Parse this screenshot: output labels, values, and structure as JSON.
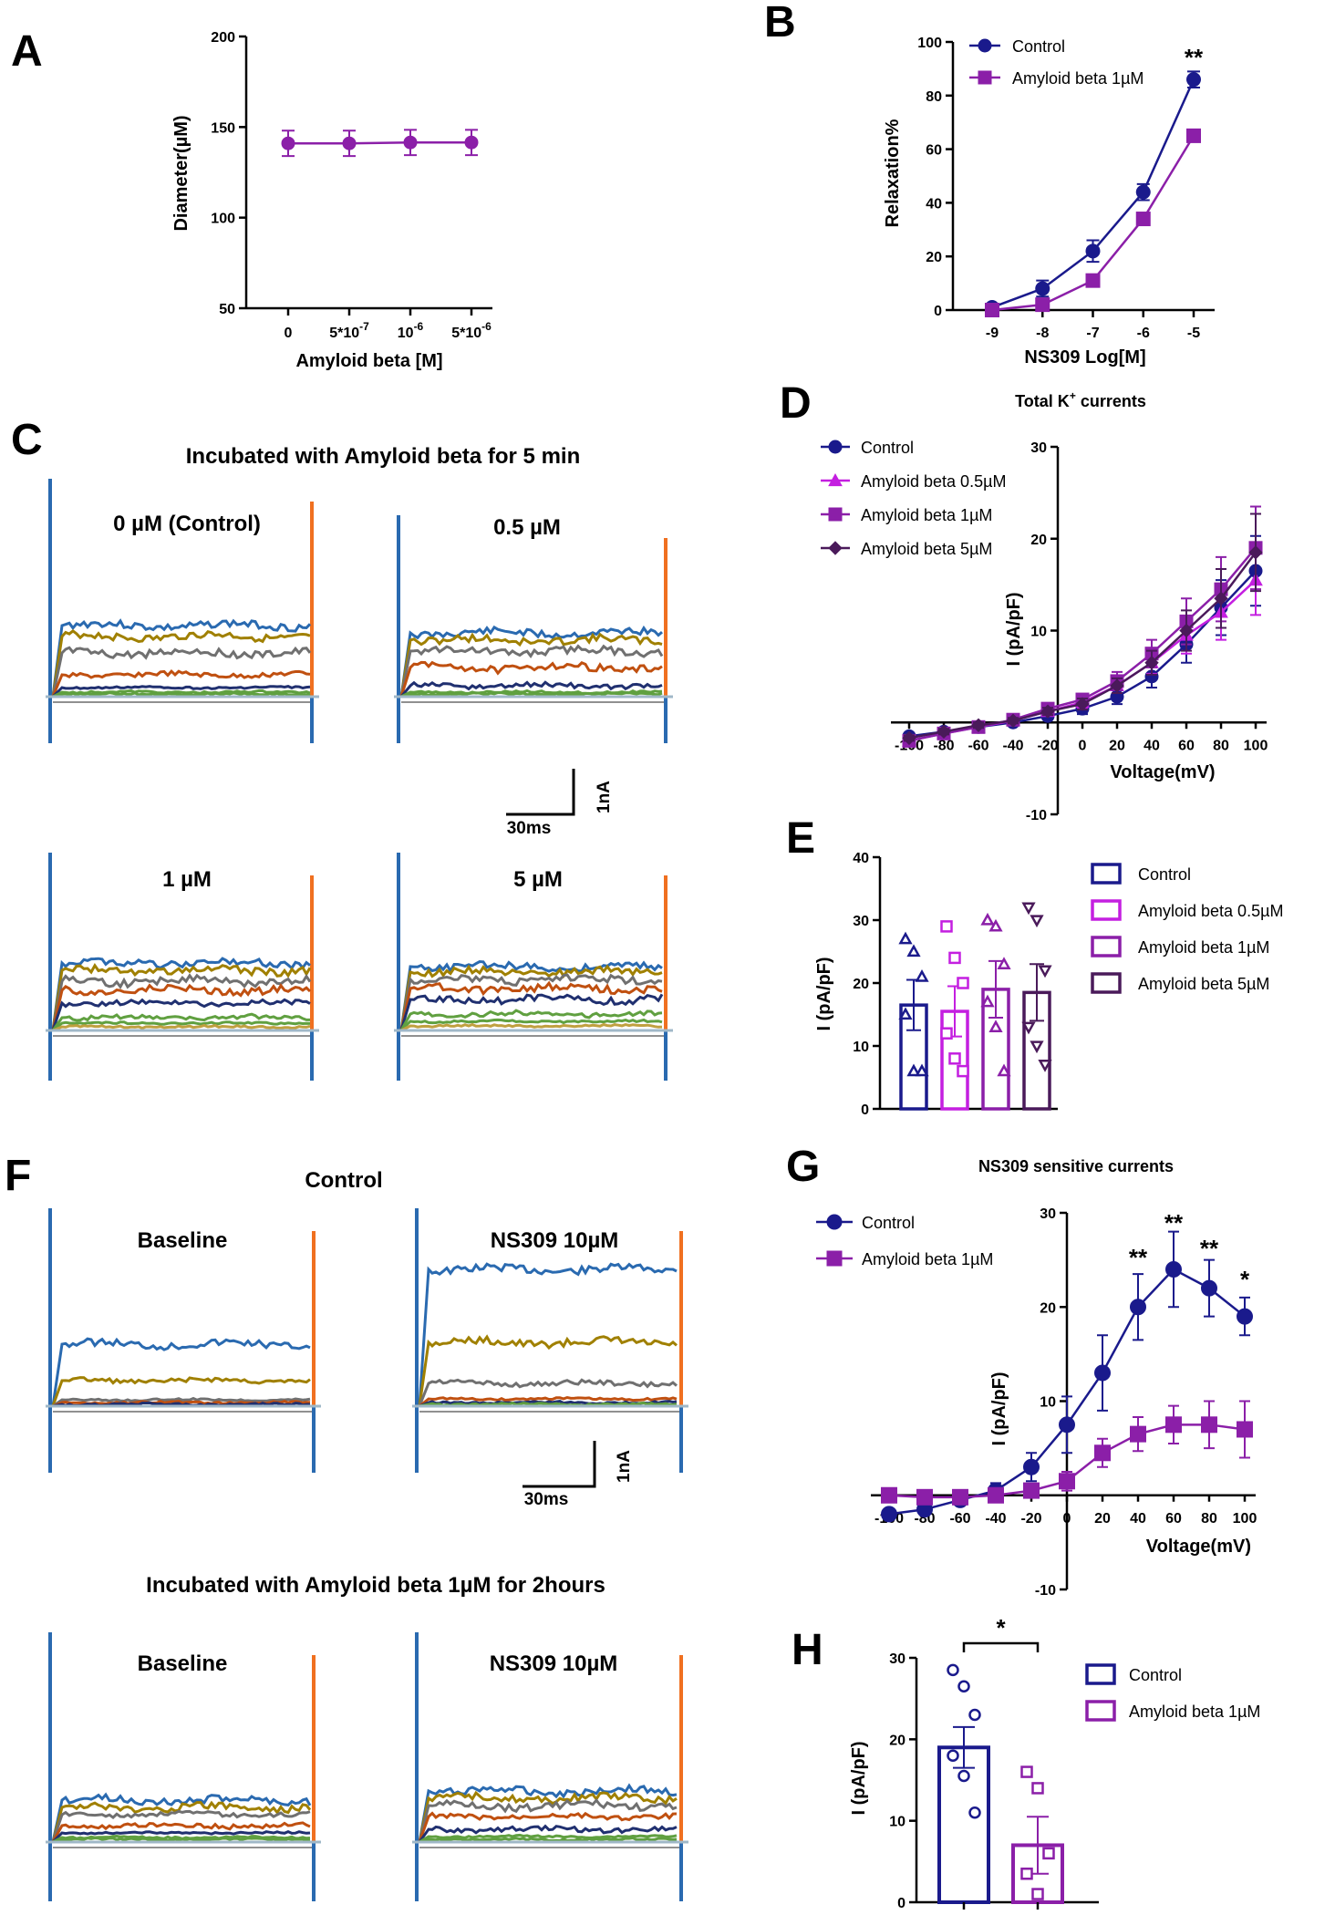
{
  "colors": {
    "navy": "#1a1a8c",
    "purple": "#8b1fa8",
    "magenta": "#c41fe0",
    "dark_purple": "#4a1a5a",
    "trace_blue": "#2a6ab0",
    "trace_gold": "#a08000",
    "trace_gray": "#707070",
    "trace_orange": "#c05010",
    "trace_navy": "#203070",
    "trace_green": "#60a040",
    "trace_spike_end": "#f07020"
  },
  "panels": {
    "A": {
      "letter": "A",
      "chart_data": {
        "type": "line",
        "categories": [
          "0",
          "5*10",
          "10",
          "5*10"
        ],
        "category_superscripts": [
          "",
          "-7",
          "-6",
          "-6"
        ],
        "values": [
          141,
          141,
          141.5,
          141.5
        ],
        "errors": [
          7,
          7,
          7,
          7
        ],
        "xlabel": "Amyloid beta [M]",
        "ylabel": "Diameter(µM)",
        "ylim": [
          50,
          200
        ],
        "yticks": [
          50,
          100,
          150,
          200
        ]
      }
    },
    "B": {
      "letter": "B",
      "chart_data": {
        "type": "line",
        "x": [
          -9,
          -8,
          -7,
          -6,
          -5
        ],
        "xticks": [
          "-9",
          "-8",
          "-7",
          "-6",
          "-5"
        ],
        "xlabel": "NS309 Log[M]",
        "ylabel": "Relaxation%",
        "ylim": [
          0,
          100
        ],
        "yticks": [
          0,
          20,
          40,
          60,
          80,
          100
        ],
        "series": [
          {
            "name": "Control",
            "values": [
              1,
              8,
              22,
              44,
              86
            ],
            "errors": [
              1,
              3,
              4,
              3,
              3
            ]
          },
          {
            "name": "Amyloid beta 1µM",
            "values": [
              0,
              2,
              11,
              34,
              65
            ],
            "errors": [
              0,
              1,
              2,
              2,
              2
            ]
          }
        ],
        "annotations": [
          {
            "x": -5,
            "text": "**"
          }
        ]
      }
    },
    "C": {
      "letter": "C",
      "title": "Incubated with Amyloid beta for 5 min",
      "traces": [
        "0 µM (Control)",
        "0.5 µM",
        "1 µM",
        "5 µM"
      ],
      "scale_x": "30ms",
      "scale_y": "1nA"
    },
    "D": {
      "letter": "D",
      "chart_data": {
        "type": "line",
        "title": "Total K",
        "title_sup": "+",
        "title_end": " currents",
        "x": [
          -100,
          -80,
          -60,
          -40,
          -20,
          0,
          20,
          40,
          60,
          80,
          100
        ],
        "xticks": [
          "-100",
          "-80",
          "-60",
          "-40",
          "-20",
          "0",
          "20",
          "40",
          "60",
          "80",
          "100"
        ],
        "xlabel": "Voltage(mV)",
        "ylabel": "I (pA/pF)",
        "ylim": [
          -10,
          30
        ],
        "yticks": [
          -10,
          10,
          20,
          30
        ],
        "series": [
          {
            "name": "Control",
            "values": [
              -1.5,
              -1,
              -0.5,
              0,
              0.7,
              1.5,
              2.8,
              5,
              8.5,
              12.5,
              16.5
            ],
            "errors": [
              0.3,
              0.3,
              0.3,
              0.3,
              0.4,
              0.6,
              0.8,
              1.2,
              2,
              3,
              3.8
            ]
          },
          {
            "name": "Amyloid beta 0.5µM",
            "values": [
              -2,
              -1.2,
              -0.5,
              0.2,
              1.2,
              2.2,
              4,
              6.5,
              9.5,
              12,
              15.5
            ],
            "errors": [
              0.3,
              0.3,
              0.3,
              0.3,
              0.4,
              0.6,
              0.8,
              1.2,
              2,
              3,
              3.8
            ]
          },
          {
            "name": "Amyloid beta 1µM",
            "values": [
              -2,
              -1.2,
              -0.5,
              0.3,
              1.5,
              2.5,
              4.5,
              7.5,
              11,
              14.5,
              19
            ],
            "errors": [
              0.3,
              0.3,
              0.3,
              0.3,
              0.4,
              0.6,
              1,
              1.5,
              2.5,
              3.5,
              4.5
            ]
          },
          {
            "name": "Amyloid beta 5µM",
            "values": [
              -1.7,
              -1,
              -0.3,
              0.2,
              1.2,
              2,
              4,
              6.5,
              10,
              13.5,
              18.5
            ],
            "errors": [
              0.3,
              0.3,
              0.3,
              0.3,
              0.4,
              0.6,
              0.8,
              1.3,
              2.2,
              3.2,
              4.2
            ]
          }
        ]
      }
    },
    "E": {
      "letter": "E",
      "chart_data": {
        "type": "bar",
        "categories": [
          "Control",
          "Amyloid beta 0.5µM",
          "Amyloid beta 1µM",
          "Amyloid beta 5µM"
        ],
        "values": [
          16.5,
          15.5,
          19,
          18.5
        ],
        "errors": [
          4,
          4,
          4.5,
          4.5
        ],
        "points": [
          [
            27,
            25,
            21,
            15,
            6,
            6
          ],
          [
            29,
            24,
            20,
            12,
            8,
            6
          ],
          [
            30,
            29,
            23,
            17,
            13,
            6
          ],
          [
            32,
            30,
            22,
            13,
            10,
            7
          ]
        ],
        "ylabel": "I (pA/pF)",
        "ylim": [
          0,
          40
        ],
        "yticks": [
          0,
          10,
          20,
          30,
          40
        ]
      }
    },
    "F": {
      "letter": "F",
      "title_top": "Control",
      "title_bottom": "Incubated with Amyloid beta 1µM for 2hours",
      "traces": [
        "Baseline",
        "NS309 10µM",
        "Baseline",
        "NS309 10µM"
      ],
      "scale_x": "30ms",
      "scale_y": "1nA"
    },
    "G": {
      "letter": "G",
      "chart_data": {
        "type": "line",
        "title": "NS309 sensitive currents",
        "x": [
          -100,
          -80,
          -60,
          -40,
          -20,
          0,
          20,
          40,
          60,
          80,
          100
        ],
        "xticks": [
          "-100",
          "-80",
          "-60",
          "-40",
          "-20",
          "0",
          "20",
          "40",
          "60",
          "80",
          "100"
        ],
        "xlabel": "Voltage(mV)",
        "ylabel": "I (pA/pF)",
        "ylim": [
          -10,
          30
        ],
        "yticks": [
          -10,
          10,
          20,
          30
        ],
        "series": [
          {
            "name": "Control",
            "values": [
              -2,
              -1.5,
              -0.5,
              0.5,
              3,
              7.5,
              13,
              20,
              24,
              22,
              19
            ],
            "errors": [
              0.5,
              0.5,
              0.5,
              0.8,
              1.5,
              3,
              4,
              3.5,
              4,
              3,
              2
            ]
          },
          {
            "name": "Amyloid beta 1µM",
            "values": [
              0,
              -0.2,
              -0.2,
              0,
              0.5,
              1.5,
              4.5,
              6.5,
              7.5,
              7.5,
              7
            ],
            "errors": [
              0.3,
              0.3,
              0.3,
              0.3,
              0.5,
              1,
              1.5,
              1.8,
              2,
              2.5,
              3
            ]
          }
        ],
        "annotations": [
          {
            "x": 40,
            "text": "**"
          },
          {
            "x": 60,
            "text": "**"
          },
          {
            "x": 80,
            "text": "**"
          },
          {
            "x": 100,
            "text": "*"
          }
        ]
      }
    },
    "H": {
      "letter": "H",
      "chart_data": {
        "type": "bar",
        "categories": [
          "Control",
          "Amyloid beta 1µM"
        ],
        "values": [
          19,
          7
        ],
        "errors": [
          2.5,
          3.5
        ],
        "points": [
          [
            28.5,
            26.5,
            23,
            18,
            15.5,
            11
          ],
          [
            16,
            14,
            6,
            3.5,
            1
          ]
        ],
        "ylabel": "I (pA/pF)",
        "ylim": [
          0,
          30
        ],
        "yticks": [
          0,
          10,
          20,
          30
        ],
        "significance": "*"
      }
    }
  }
}
